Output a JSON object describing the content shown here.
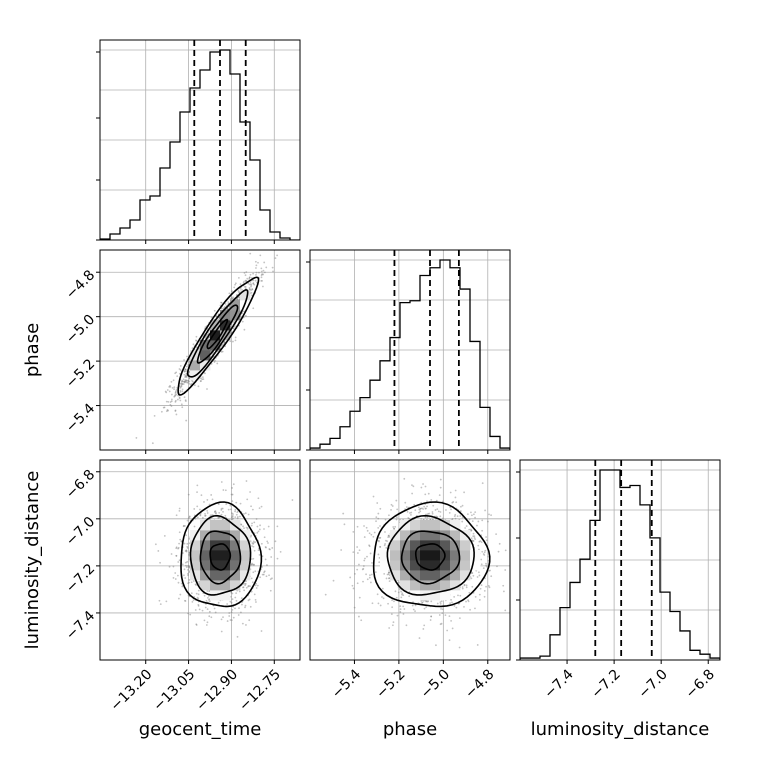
{
  "chart_data": {
    "type": "corner",
    "grid": true,
    "parameters": [
      {
        "name": "geocent_time",
        "label": "geocent_time",
        "range": [
          -13.36,
          -12.66
        ],
        "ticks": [
          -13.2,
          -13.05,
          -12.9,
          -12.75
        ],
        "tick_labels": [
          "−13.20",
          "−13.05",
          "−12.90",
          "−12.75"
        ],
        "quantiles": [
          -13.03,
          -12.94,
          -12.85
        ],
        "hist_bin_edges": [
          -13.36,
          -13.325,
          -13.29,
          -13.255,
          -13.22,
          -13.185,
          -13.15,
          -13.115,
          -13.08,
          -13.045,
          -13.01,
          -12.975,
          -12.94,
          -12.905,
          -12.87,
          -12.835,
          -12.8,
          -12.765,
          -12.73,
          -12.695,
          -12.66
        ],
        "hist_counts": [
          0.005,
          0.03,
          0.06,
          0.1,
          0.2,
          0.22,
          0.36,
          0.49,
          0.64,
          0.76,
          0.85,
          0.94,
          0.95,
          0.83,
          0.59,
          0.4,
          0.15,
          0.04,
          0.01,
          0
        ]
      },
      {
        "name": "phase",
        "label": "phase",
        "range": [
          -5.6,
          -4.7
        ],
        "ticks": [
          -5.4,
          -5.2,
          -5.0,
          -4.8
        ],
        "tick_labels": [
          "−5.4",
          "−5.2",
          "−5.0",
          "−4.8"
        ],
        "quantiles": [
          -5.22,
          -5.06,
          -4.93
        ],
        "hist_bin_edges": [
          -5.6,
          -5.555,
          -5.51,
          -5.465,
          -5.42,
          -5.375,
          -5.33,
          -5.285,
          -5.24,
          -5.195,
          -5.15,
          -5.105,
          -5.06,
          -5.015,
          -4.97,
          -4.925,
          -4.88,
          -4.835,
          -4.79,
          -4.745,
          -4.7
        ],
        "hist_counts": [
          0.01,
          0.03,
          0.06,
          0.12,
          0.2,
          0.27,
          0.36,
          0.46,
          0.58,
          0.76,
          0.77,
          0.9,
          0.94,
          0.98,
          0.94,
          0.83,
          0.56,
          0.22,
          0.07,
          0.01
        ]
      },
      {
        "name": "luminosity_distance",
        "label": "luminosity_distance",
        "range": [
          -7.6,
          -6.75
        ],
        "ticks": [
          -7.4,
          -7.2,
          -7.0,
          -6.8
        ],
        "tick_labels": [
          "−7.4",
          "−7.2",
          "−7.0",
          "−6.8"
        ],
        "quantiles": [
          -7.28,
          -7.17,
          -7.04
        ],
        "hist_bin_edges": [
          -7.6,
          -7.5575,
          -7.515,
          -7.4725,
          -7.43,
          -7.3875,
          -7.345,
          -7.3025,
          -7.26,
          -7.2175,
          -7.175,
          -7.1325,
          -7.09,
          -7.0475,
          -7.005,
          -6.9625,
          -6.92,
          -6.8775,
          -6.835,
          -6.7925,
          -6.75
        ],
        "hist_counts": [
          0.01,
          0.01,
          0.02,
          0.13,
          0.27,
          0.4,
          0.52,
          0.72,
          0.98,
          0.98,
          0.89,
          0.9,
          0.8,
          0.63,
          0.35,
          0.25,
          0.15,
          0.05,
          0.03,
          0.01
        ]
      }
    ],
    "pairs": [
      {
        "x": "geocent_time",
        "y": "phase",
        "center": [
          -12.95,
          -5.08
        ],
        "sigma": [
          0.07,
          0.13
        ],
        "correlation": 0.93
      },
      {
        "x": "geocent_time",
        "y": "luminosity_distance",
        "center": [
          -12.94,
          -7.16
        ],
        "sigma": [
          0.07,
          0.11
        ],
        "correlation": 0.0
      },
      {
        "x": "phase",
        "y": "luminosity_distance",
        "center": [
          -5.06,
          -7.16
        ],
        "sigma": [
          0.13,
          0.11
        ],
        "correlation": 0.0
      }
    ]
  }
}
